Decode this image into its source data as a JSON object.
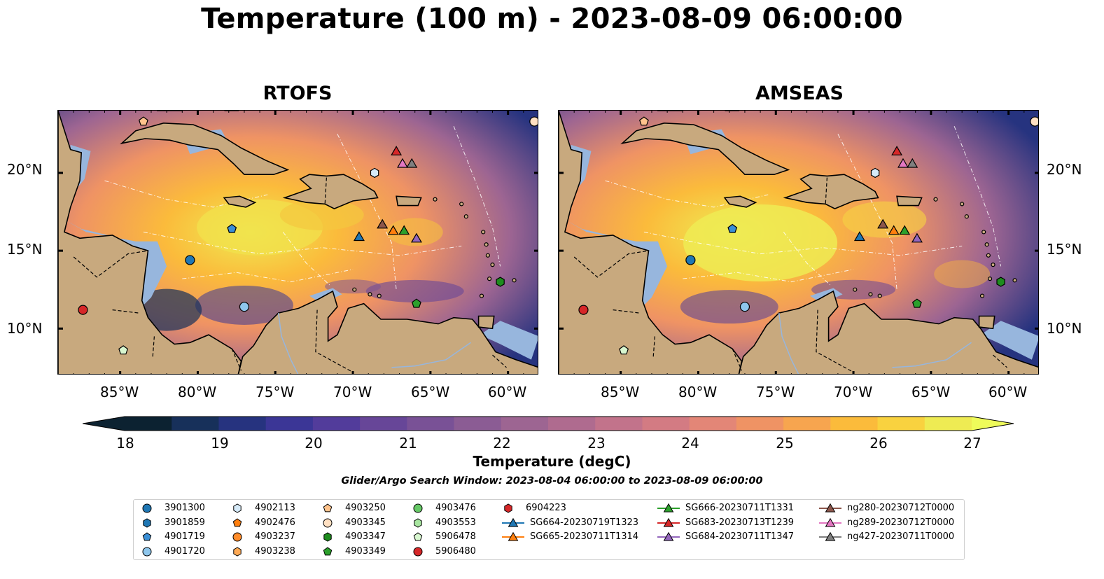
{
  "title": "Temperature (100 m) - 2023-08-09 06:00:00",
  "panels": [
    {
      "title": "RTOFS"
    },
    {
      "title": "AMSEAS"
    }
  ],
  "lat_ticks": [
    "20°N",
    "15°N",
    "10°N"
  ],
  "lon_ticks": [
    "85°W",
    "80°W",
    "75°W",
    "70°W",
    "65°W",
    "60°W"
  ],
  "colorbar": {
    "label": "Temperature (degC)",
    "ticks": [
      "18",
      "19",
      "20",
      "21",
      "22",
      "23",
      "24",
      "25",
      "26",
      "27"
    ],
    "range": [
      18,
      27
    ],
    "extend": "both",
    "colors": [
      "#0c2231",
      "#17305a",
      "#26337f",
      "#3b3696",
      "#523c9b",
      "#674698",
      "#795196",
      "#8b5c94",
      "#9d6592",
      "#af6b8f",
      "#c2738b",
      "#d37b83",
      "#e38677",
      "#ef9364",
      "#f7a54f",
      "#fbbb3b",
      "#f9d23f",
      "#eeeb53"
    ]
  },
  "colors": {
    "land": "#c8a97e",
    "shallow_water": "#97b6dd",
    "coastline": "#000000"
  },
  "search_window": "Glider/Argo Search Window: 2023-08-04 06:00:00 to 2023-08-09 06:00:00",
  "legend": {
    "entries": [
      {
        "label": "3901300",
        "marker": "circle",
        "color": "#1f77b4"
      },
      {
        "label": "3901859",
        "marker": "hexagon",
        "color": "#1f77b4"
      },
      {
        "label": "4901719",
        "marker": "pentagon",
        "color": "#3a8fd6"
      },
      {
        "label": "4901720",
        "marker": "circle",
        "color": "#8ec6ec"
      },
      {
        "label": "4902113",
        "marker": "hexagon",
        "color": "#d6eaf8"
      },
      {
        "label": "4902476",
        "marker": "pentagon",
        "color": "#ff7f0e"
      },
      {
        "label": "4903237",
        "marker": "circle",
        "color": "#ff8c2a"
      },
      {
        "label": "4903238",
        "marker": "hexagon",
        "color": "#ffaa55"
      },
      {
        "label": "4903250",
        "marker": "pentagon",
        "color": "#ffc38c"
      },
      {
        "label": "4903345",
        "marker": "circle",
        "color": "#ffe0c2"
      },
      {
        "label": "4903347",
        "marker": "hexagon",
        "color": "#1e8c1e"
      },
      {
        "label": "4903349",
        "marker": "pentagon",
        "color": "#2ca02c"
      },
      {
        "label": "4903476",
        "marker": "circle",
        "color": "#66c966"
      },
      {
        "label": "4903553",
        "marker": "hexagon",
        "color": "#a8e6a0"
      },
      {
        "label": "5906478",
        "marker": "pentagon",
        "color": "#d8f7d0"
      },
      {
        "label": "5906480",
        "marker": "circle",
        "color": "#d62728"
      },
      {
        "label": "6904223",
        "marker": "hexagon",
        "color": "#d62728"
      },
      {
        "label": "SG664-20230719T1323",
        "marker": "triangle-line",
        "color": "#1f77b4"
      },
      {
        "label": "SG665-20230711T1314",
        "marker": "triangle-line",
        "color": "#ff7f0e"
      },
      {
        "label": "SG666-20230711T1331",
        "marker": "triangle-line",
        "color": "#2ca02c"
      },
      {
        "label": "SG683-20230713T1239",
        "marker": "triangle-line",
        "color": "#d62728"
      },
      {
        "label": "SG684-20230711T1347",
        "marker": "triangle-line",
        "color": "#9467bd"
      },
      {
        "label": "ng280-20230712T0000",
        "marker": "triangle-line",
        "color": "#8c564b"
      },
      {
        "label": "ng289-20230712T0000",
        "marker": "triangle-line",
        "color": "#e377c2"
      },
      {
        "label": "ng427-20230711T0000",
        "marker": "triangle-line",
        "color": "#7f7f7f"
      }
    ]
  },
  "map_extent": {
    "lon": [
      -89,
      -58
    ],
    "lat": [
      7,
      24
    ]
  },
  "observations": [
    {
      "id": "3901300",
      "lon": -80.5,
      "lat": 14.4
    },
    {
      "id": "4901720",
      "lon": -77.0,
      "lat": 11.4
    },
    {
      "id": "4902113",
      "lon": -68.6,
      "lat": 20.0
    },
    {
      "id": "4901719",
      "lon": -77.8,
      "lat": 16.4
    },
    {
      "id": "5906480",
      "lon": -87.4,
      "lat": 11.2
    },
    {
      "id": "5906478",
      "lon": -84.8,
      "lat": 8.6
    },
    {
      "id": "4903349",
      "lon": -65.9,
      "lat": 11.6
    },
    {
      "id": "4903347",
      "lon": -60.5,
      "lat": 13.0
    },
    {
      "id": "4903345",
      "lon": -58.3,
      "lat": 23.3
    },
    {
      "id": "4903250",
      "lon": -83.5,
      "lat": 23.3
    },
    {
      "id": "SG683-20230713T1239",
      "lon": -67.2,
      "lat": 21.4
    },
    {
      "id": "ng289-20230712T0000",
      "lon": -66.8,
      "lat": 20.6
    },
    {
      "id": "ng427-20230711T0000",
      "lon": -66.2,
      "lat": 20.6
    },
    {
      "id": "SG664-20230719T1323",
      "lon": -69.6,
      "lat": 15.9
    },
    {
      "id": "ng280-20230712T0000",
      "lon": -68.1,
      "lat": 16.7
    },
    {
      "id": "SG665-20230711T1314",
      "lon": -67.4,
      "lat": 16.3
    },
    {
      "id": "SG666-20230711T1331",
      "lon": -66.7,
      "lat": 16.3
    },
    {
      "id": "SG684-20230711T1347",
      "lon": -65.9,
      "lat": 15.8
    }
  ]
}
